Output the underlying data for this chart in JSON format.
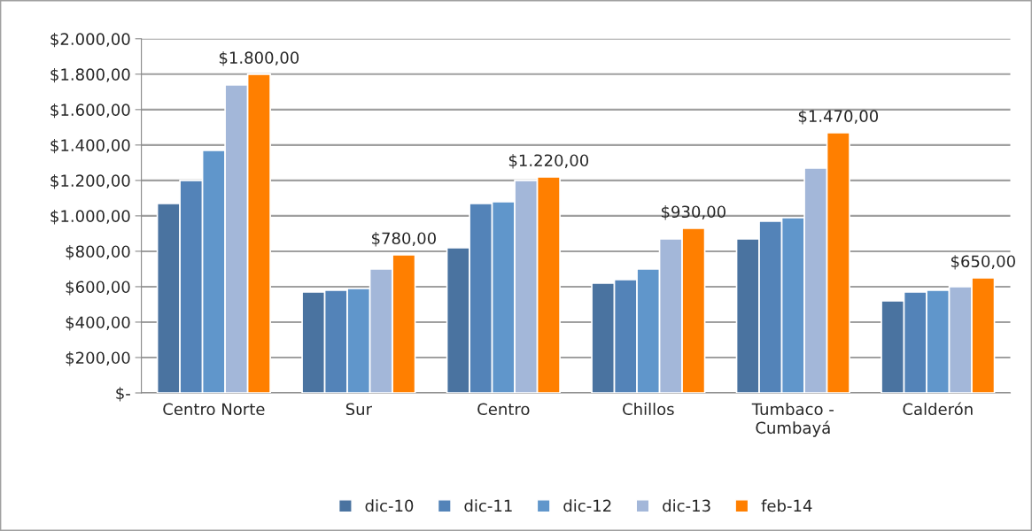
{
  "chart_data": {
    "type": "bar",
    "categories": [
      "Centro Norte",
      "Sur",
      "Centro",
      "Chillos",
      "Tumbaco -\nCumbayá",
      "Calderón"
    ],
    "series": [
      {
        "name": "dic-10",
        "color": "#4a73a0",
        "values": [
          1070,
          570,
          820,
          620,
          870,
          520
        ]
      },
      {
        "name": "dic-11",
        "color": "#5383b8",
        "values": [
          1200,
          580,
          1070,
          640,
          970,
          570
        ]
      },
      {
        "name": "dic-12",
        "color": "#6096cb",
        "values": [
          1370,
          590,
          1080,
          700,
          990,
          580
        ]
      },
      {
        "name": "dic-13",
        "color": "#a3b7d9",
        "values": [
          1740,
          700,
          1200,
          870,
          1270,
          600
        ]
      },
      {
        "name": "feb-14",
        "color": "#ff7f00",
        "values": [
          1800,
          780,
          1220,
          930,
          1470,
          650
        ],
        "value_labels": [
          "$1.800,00",
          "$780,00",
          "$1.220,00",
          "$930,00",
          "$1.470,00",
          "$650,00"
        ]
      }
    ],
    "ylim": [
      0,
      2000
    ],
    "yticks": [
      {
        "value": 0,
        "label": "$-"
      },
      {
        "value": 200,
        "label": "$200,00"
      },
      {
        "value": 400,
        "label": "$400,00"
      },
      {
        "value": 600,
        "label": "$600,00"
      },
      {
        "value": 800,
        "label": "$800,00"
      },
      {
        "value": 1000,
        "label": "$1.000,00"
      },
      {
        "value": 1200,
        "label": "$1.200,00"
      },
      {
        "value": 1400,
        "label": "$1.400,00"
      },
      {
        "value": 1600,
        "label": "$1.600,00"
      },
      {
        "value": 1800,
        "label": "$1.800,00"
      },
      {
        "value": 2000,
        "label": "$2.000,00"
      }
    ],
    "grid": "y",
    "legend": "bottom"
  }
}
